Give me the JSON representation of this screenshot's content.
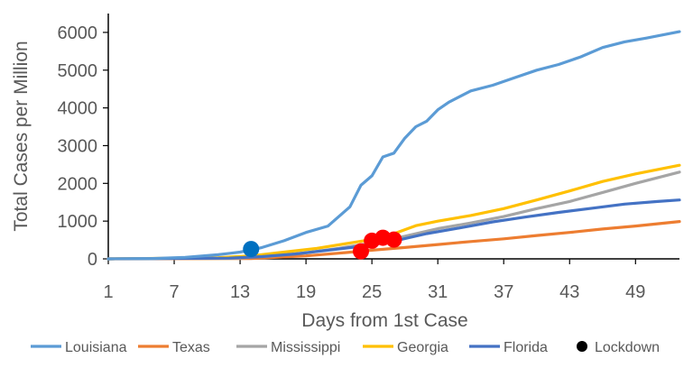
{
  "chart_data": {
    "type": "line",
    "xlabel": "Days from 1st Case",
    "ylabel": "Total Cases per Million",
    "xlim": [
      1,
      53
    ],
    "ylim": [
      0,
      6500
    ],
    "x_ticks": [
      "1",
      "7",
      "13",
      "19",
      "25",
      "31",
      "37",
      "43",
      "49"
    ],
    "y_ticks": [
      "0",
      "1000",
      "2000",
      "3000",
      "4000",
      "5000",
      "6000"
    ],
    "grid": false,
    "legend_position": "bottom",
    "series": [
      {
        "name": "Louisiana",
        "color": "#5B9BD5",
        "points": [
          [
            1,
            0
          ],
          [
            5,
            10
          ],
          [
            8,
            40
          ],
          [
            11,
            110
          ],
          [
            13,
            180
          ],
          [
            15,
            300
          ],
          [
            17,
            480
          ],
          [
            19,
            700
          ],
          [
            21,
            870
          ],
          [
            23,
            1380
          ],
          [
            24,
            1950
          ],
          [
            25,
            2200
          ],
          [
            26,
            2700
          ],
          [
            27,
            2800
          ],
          [
            28,
            3200
          ],
          [
            29,
            3500
          ],
          [
            30,
            3650
          ],
          [
            31,
            3950
          ],
          [
            32,
            4150
          ],
          [
            33,
            4300
          ],
          [
            34,
            4450
          ],
          [
            36,
            4600
          ],
          [
            38,
            4800
          ],
          [
            40,
            5000
          ],
          [
            42,
            5150
          ],
          [
            44,
            5350
          ],
          [
            46,
            5600
          ],
          [
            48,
            5750
          ],
          [
            50,
            5850
          ],
          [
            53,
            6020
          ]
        ]
      },
      {
        "name": "Texas",
        "color": "#ED7D31",
        "points": [
          [
            1,
            0
          ],
          [
            14,
            10
          ],
          [
            19,
            80
          ],
          [
            22,
            150
          ],
          [
            25,
            230
          ],
          [
            28,
            300
          ],
          [
            31,
            380
          ],
          [
            34,
            460
          ],
          [
            37,
            530
          ],
          [
            40,
            620
          ],
          [
            43,
            700
          ],
          [
            46,
            790
          ],
          [
            49,
            870
          ],
          [
            53,
            990
          ]
        ]
      },
      {
        "name": "Mississippi",
        "color": "#A5A5A5",
        "points": [
          [
            1,
            0
          ],
          [
            13,
            20
          ],
          [
            16,
            80
          ],
          [
            19,
            160
          ],
          [
            22,
            280
          ],
          [
            25,
            420
          ],
          [
            28,
            600
          ],
          [
            31,
            800
          ],
          [
            34,
            950
          ],
          [
            37,
            1120
          ],
          [
            40,
            1330
          ],
          [
            43,
            1520
          ],
          [
            46,
            1760
          ],
          [
            49,
            2000
          ],
          [
            53,
            2300
          ]
        ]
      },
      {
        "name": "Georgia",
        "color": "#FFC000",
        "points": [
          [
            1,
            0
          ],
          [
            11,
            30
          ],
          [
            14,
            80
          ],
          [
            17,
            180
          ],
          [
            20,
            280
          ],
          [
            23,
            420
          ],
          [
            26,
            560
          ],
          [
            29,
            880
          ],
          [
            31,
            1000
          ],
          [
            34,
            1150
          ],
          [
            37,
            1330
          ],
          [
            40,
            1560
          ],
          [
            43,
            1800
          ],
          [
            46,
            2050
          ],
          [
            49,
            2250
          ],
          [
            53,
            2480
          ]
        ]
      },
      {
        "name": "Florida",
        "color": "#4472C4",
        "points": [
          [
            1,
            0
          ],
          [
            12,
            20
          ],
          [
            15,
            60
          ],
          [
            18,
            130
          ],
          [
            21,
            230
          ],
          [
            24,
            330
          ],
          [
            27,
            470
          ],
          [
            30,
            670
          ],
          [
            33,
            820
          ],
          [
            36,
            980
          ],
          [
            39,
            1110
          ],
          [
            42,
            1230
          ],
          [
            45,
            1340
          ],
          [
            48,
            1450
          ],
          [
            51,
            1520
          ],
          [
            53,
            1560
          ]
        ]
      }
    ],
    "lockdown_marker": {
      "name": "Lockdown",
      "legend_color": "#000000"
    },
    "lockdown_points": [
      {
        "x": 14,
        "y": 260,
        "color": "#0070C0"
      },
      {
        "x": 24,
        "y": 200,
        "color": "#FF0000"
      },
      {
        "x": 25,
        "y": 480,
        "color": "#FF0000"
      },
      {
        "x": 26,
        "y": 560,
        "color": "#FF0000"
      },
      {
        "x": 27,
        "y": 510,
        "color": "#FF0000"
      }
    ]
  }
}
